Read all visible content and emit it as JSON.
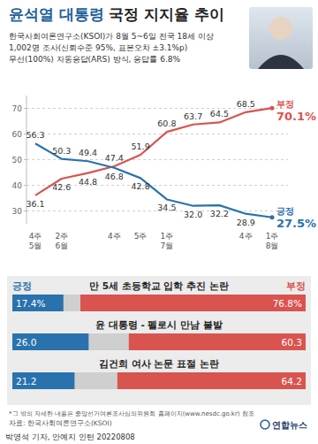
{
  "page": {
    "title": {
      "highlight": "윤석열 대통령",
      "text": "국정 지지율 추이"
    },
    "subtitle": [
      "한국사회여론연구소(KSOI)가 8월 5~6일 전국 18세 이상",
      "1,002명 조사(신뢰수준 95%, 표본오차 ±3.1%p)",
      "무선(100%) 자동응답(ARS) 방식, 응답률 6.8%"
    ],
    "footnote": "*그 밖의 자세한 내용은 중앙선거여론조사심의위원회 홈페이지(www.nesdc.go.kr) 참조",
    "source": "자료: 한국사회여론연구소(KSOI)",
    "logo": "연합뉴스",
    "credit": "박영석 기자, 안예지 인턴 20220808"
  },
  "chart_data": [
    {
      "type": "line",
      "categories": [
        "4주\n5월",
        "2주\n6월",
        null,
        "4주",
        "5주",
        "1주\n7월",
        null,
        null,
        "4주",
        "1주\n8월"
      ],
      "series": [
        {
          "name": "부정",
          "color": "#d9534f",
          "values": [
            36.1,
            42.6,
            44.8,
            47.4,
            51.9,
            60.8,
            63.7,
            64.5,
            68.5,
            70.1
          ],
          "value_labels": [
            "36.1",
            "42.6",
            "44.8",
            "47.4",
            "51.9",
            "60.8",
            "63.7",
            "64.5",
            "68.5",
            "70.1%"
          ]
        },
        {
          "name": "긍정",
          "color": "#2a72ad",
          "values": [
            56.3,
            50.3,
            49.4,
            46.8,
            42.8,
            34.5,
            32.0,
            32.2,
            28.9,
            27.5
          ],
          "value_labels": [
            "56.3",
            "50.3",
            "49.4",
            "46.8",
            "42.8",
            "34.5",
            "32.0",
            "32.2",
            "28.9",
            "27.5%"
          ]
        }
      ],
      "ylim": [
        25,
        75
      ],
      "yticks": [
        30,
        40,
        50,
        60,
        70
      ],
      "grid": true,
      "data_labels": true
    },
    {
      "type": "bar",
      "orientation": "horizontal",
      "categories": [
        "만 5세 초등학교 입학 추진 논란",
        "윤 대통령 - 펠로시 만남 불발",
        "김건희 여사 논문 표절 논란"
      ],
      "series": [
        {
          "name": "긍정",
          "color": "#2a72ad",
          "values": [
            17.4,
            26.0,
            21.2
          ],
          "value_labels": [
            "17.4%",
            "26.0",
            "21.2"
          ]
        },
        {
          "name": "부정",
          "color": "#d9534f",
          "values": [
            76.8,
            60.3,
            64.2
          ],
          "value_labels": [
            "76.8%",
            "60.3",
            "64.2"
          ]
        }
      ],
      "xlim": [
        0,
        100
      ],
      "tick_labels": false,
      "data_labels": true
    }
  ]
}
